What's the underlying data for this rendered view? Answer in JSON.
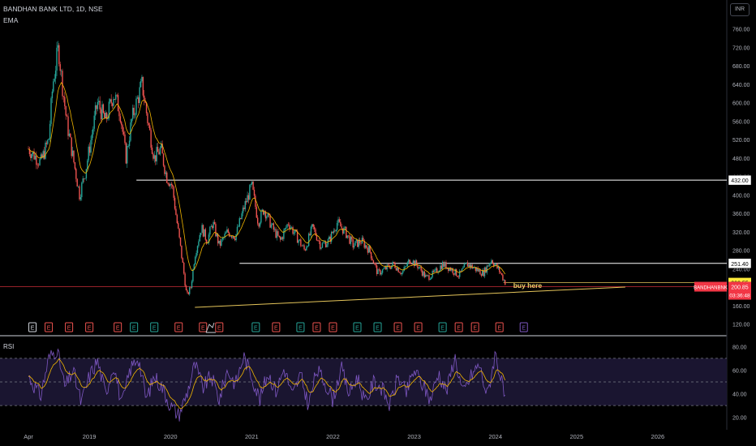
{
  "header": {
    "symbol_line": "BANDHAN BANK LTD, 1D, NSE",
    "indicator": "EMA"
  },
  "currency_label": "INR",
  "colors": {
    "background": "#000000",
    "up": "#26a69a",
    "down": "#ef5350",
    "ema": "#f2b600",
    "trendline": "#e5c55a",
    "level": "#ffffff",
    "rsi": "#7e57c2",
    "rsi_ma": "#f2b600",
    "rsi_band": "#1a1530",
    "current_price": "#f23645"
  },
  "chart_data": [
    {
      "type": "line",
      "title": "BANDHAN BANK LTD, 1D, NSE",
      "ylabel": "INR",
      "y_ticks": [
        120,
        160,
        200,
        240,
        280,
        320,
        360,
        400,
        440,
        480,
        520,
        560,
        600,
        640,
        680,
        720,
        760
      ],
      "y_tick_labels": [
        "120.00",
        "160.00",
        "200.00",
        "240.00",
        "280.00",
        "320.00",
        "360.00",
        "400.00",
        "440.00",
        "480.00",
        "520.00",
        "560.00",
        "600.00",
        "640.00",
        "680.00",
        "720.00",
        "760.00"
      ],
      "ylim": [
        98,
        770
      ],
      "x_ticks": [
        2018.25,
        2019,
        2020,
        2021,
        2022,
        2023,
        2024,
        2025,
        2026
      ],
      "x_tick_labels": [
        "Apr",
        "2019",
        "2020",
        "2021",
        "2022",
        "2023",
        "2024",
        "2025",
        "2026"
      ],
      "xlim": [
        2017.9,
        2026.85
      ],
      "series": [
        {
          "values_from_x": 2018.25,
          "x": [
            2018.25,
            2018.4,
            2018.5,
            2018.55,
            2018.62,
            2018.66,
            2018.72,
            2018.8,
            2018.88,
            2018.95,
            2019.02,
            2019.1,
            2019.2,
            2019.3,
            2019.38,
            2019.45,
            2019.52,
            2019.58,
            2019.65,
            2019.72,
            2019.8,
            2019.88,
            2019.95,
            2020.02,
            2020.08,
            2020.15,
            2020.2,
            2020.25,
            2020.3,
            2020.38,
            2020.45,
            2020.52,
            2020.6,
            2020.7,
            2020.8,
            2020.9,
            2021.0,
            2021.08,
            2021.15,
            2021.25,
            2021.35,
            2021.45,
            2021.55,
            2021.65,
            2021.75,
            2021.85,
            2021.95,
            2022.05,
            2022.15,
            2022.25,
            2022.35,
            2022.45,
            2022.55,
            2022.65,
            2022.75,
            2022.85,
            2022.95,
            2023.05,
            2023.15,
            2023.25,
            2023.35,
            2023.45,
            2023.55,
            2023.65,
            2023.75,
            2023.85,
            2023.95,
            2024.05,
            2024.12
          ],
          "values": [
            500,
            470,
            520,
            640,
            720,
            650,
            560,
            480,
            400,
            450,
            520,
            600,
            560,
            620,
            580,
            480,
            560,
            600,
            640,
            560,
            480,
            500,
            440,
            420,
            340,
            250,
            180,
            200,
            270,
            330,
            300,
            340,
            290,
            320,
            310,
            370,
            420,
            340,
            370,
            330,
            300,
            340,
            310,
            280,
            330,
            290,
            300,
            340,
            320,
            290,
            300,
            280,
            230,
            240,
            250,
            230,
            260,
            245,
            220,
            230,
            250,
            240,
            225,
            250,
            240,
            230,
            260,
            235,
            210
          ]
        }
      ],
      "horizontal_levels": [
        {
          "value": 432,
          "label": "432.00",
          "from_x": 2019.58
        },
        {
          "value": 251.4,
          "label": "251.40",
          "from_x": 2020.85
        }
      ],
      "price_labels": [
        {
          "value": 209.55,
          "label": "209.55"
        },
        {
          "value": 200.85,
          "label": "200.85",
          "timer": "03:36:48",
          "symbol": "BANDHANBNK"
        }
      ],
      "trendline": {
        "x": [
          2020.3,
          2025.6
        ],
        "y": [
          156,
          200
        ]
      },
      "annotations": [
        {
          "text": "buy here",
          "x": 2024.22,
          "y": 198
        }
      ],
      "earnings_markers": {
        "x": [
          2018.3,
          2018.5,
          2018.75,
          2019.0,
          2019.35,
          2019.55,
          2019.8,
          2020.1,
          2020.4,
          2020.6,
          2021.05,
          2021.3,
          2021.6,
          2021.8,
          2022.0,
          2022.3,
          2022.55,
          2022.8,
          2023.05,
          2023.35,
          2023.55,
          2023.75,
          2024.05,
          2024.35
        ],
        "colors": [
          "#d1d4dc",
          "#ef5350",
          "#ef5350",
          "#ef5350",
          "#ef5350",
          "#26a69a",
          "#26a69a",
          "#ef5350",
          "#ef5350",
          "#ef5350",
          "#26a69a",
          "#ef5350",
          "#26a69a",
          "#ef5350",
          "#ef5350",
          "#26a69a",
          "#26a69a",
          "#ef5350",
          "#ef5350",
          "#26a69a",
          "#ef5350",
          "#ef5350",
          "#ef5350",
          "#7e57c2"
        ],
        "label": "E"
      }
    },
    {
      "type": "line",
      "title": "RSI",
      "y_ticks": [
        20,
        40,
        60,
        80
      ],
      "y_tick_labels": [
        "20.00",
        "40.00",
        "60.00",
        "80.00"
      ],
      "ylim": [
        15,
        85
      ],
      "band": [
        30,
        70
      ],
      "midline": 50,
      "series": [
        {
          "x": [
            2018.25,
            2018.4,
            2018.5,
            2018.6,
            2018.7,
            2018.8,
            2018.9,
            2019.0,
            2019.1,
            2019.2,
            2019.3,
            2019.4,
            2019.5,
            2019.6,
            2019.7,
            2019.8,
            2019.9,
            2020.0,
            2020.1,
            2020.2,
            2020.3,
            2020.4,
            2020.5,
            2020.6,
            2020.7,
            2020.8,
            2020.9,
            2021.0,
            2021.1,
            2021.2,
            2021.3,
            2021.4,
            2021.5,
            2021.6,
            2021.7,
            2021.8,
            2021.9,
            2022.0,
            2022.1,
            2022.2,
            2022.3,
            2022.4,
            2022.5,
            2022.6,
            2022.7,
            2022.8,
            2022.9,
            2023.0,
            2023.1,
            2023.2,
            2023.3,
            2023.4,
            2023.5,
            2023.6,
            2023.7,
            2023.8,
            2023.9,
            2024.0,
            2024.12
          ],
          "values": [
            55,
            38,
            70,
            78,
            45,
            60,
            32,
            55,
            68,
            40,
            65,
            30,
            60,
            72,
            35,
            55,
            45,
            30,
            22,
            40,
            65,
            45,
            55,
            35,
            60,
            48,
            72,
            55,
            35,
            58,
            42,
            62,
            38,
            56,
            30,
            60,
            50,
            35,
            62,
            40,
            55,
            32,
            50,
            45,
            30,
            55,
            40,
            60,
            48,
            35,
            58,
            42,
            72,
            40,
            55,
            65,
            38,
            75,
            35
          ]
        }
      ]
    }
  ]
}
